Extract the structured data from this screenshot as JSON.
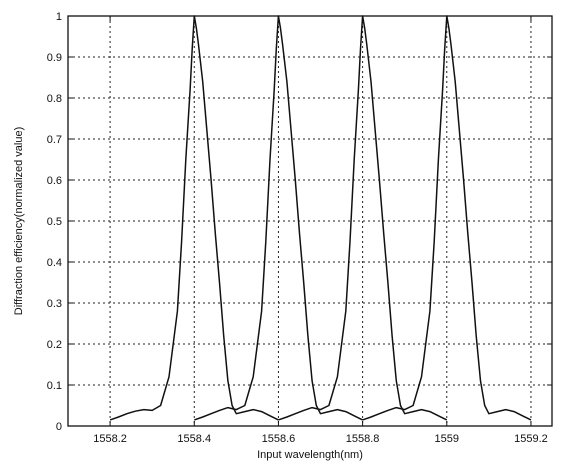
{
  "chart_data": {
    "type": "line",
    "title": "",
    "xlabel": "Input wavelength(nm)",
    "ylabel": "Diffraction efficiency(normalized value)",
    "xlim": [
      1558.1,
      1559.25
    ],
    "ylim": [
      0,
      1
    ],
    "grid": true,
    "legend": "none",
    "xticks": [
      1558.2,
      1558.4,
      1558.6,
      1558.8,
      1559,
      1559.2
    ],
    "xtick_labels": [
      "1558.2",
      "1558.4",
      "1558.6",
      "1558.8",
      "1559",
      "1559.2"
    ],
    "yticks": [
      0,
      0.1,
      0.2,
      0.3,
      0.4,
      0.5,
      0.6,
      0.7,
      0.8,
      0.9,
      1
    ],
    "ytick_labels": [
      "0",
      "0.1",
      "0.2",
      "0.3",
      "0.4",
      "0.5",
      "0.6",
      "0.7",
      "0.8",
      "0.9",
      "1"
    ],
    "line_color": "#111111",
    "series": [
      {
        "x": [
          1558.2,
          1558.22,
          1558.24,
          1558.26,
          1558.28,
          1558.3,
          1558.32,
          1558.34,
          1558.36,
          1558.37,
          1558.38,
          1558.39,
          1558.395,
          1558.4,
          1558.405,
          1558.41,
          1558.42,
          1558.43,
          1558.44,
          1558.45,
          1558.46,
          1558.47,
          1558.48,
          1558.49,
          1558.5,
          1558.52,
          1558.54,
          1558.56,
          1558.58,
          1558.6
        ],
        "y": [
          0.015,
          0.022,
          0.03,
          0.036,
          0.04,
          0.038,
          0.05,
          0.12,
          0.28,
          0.45,
          0.65,
          0.82,
          0.92,
          1.0,
          0.97,
          0.93,
          0.84,
          0.72,
          0.6,
          0.47,
          0.35,
          0.22,
          0.11,
          0.05,
          0.03,
          0.035,
          0.04,
          0.035,
          0.025,
          0.015
        ]
      },
      {
        "x": [
          1558.4,
          1558.42,
          1558.44,
          1558.46,
          1558.48,
          1558.5,
          1558.52,
          1558.54,
          1558.56,
          1558.57,
          1558.58,
          1558.59,
          1558.595,
          1558.6,
          1558.605,
          1558.61,
          1558.62,
          1558.63,
          1558.64,
          1558.65,
          1558.66,
          1558.67,
          1558.68,
          1558.69,
          1558.7,
          1558.72,
          1558.74,
          1558.76,
          1558.78,
          1558.8
        ],
        "y": [
          0.015,
          0.022,
          0.03,
          0.038,
          0.045,
          0.04,
          0.05,
          0.12,
          0.28,
          0.45,
          0.65,
          0.82,
          0.92,
          1.0,
          0.97,
          0.93,
          0.84,
          0.72,
          0.6,
          0.47,
          0.35,
          0.22,
          0.11,
          0.05,
          0.03,
          0.035,
          0.04,
          0.035,
          0.025,
          0.015
        ]
      },
      {
        "x": [
          1558.6,
          1558.62,
          1558.64,
          1558.66,
          1558.68,
          1558.7,
          1558.72,
          1558.74,
          1558.76,
          1558.77,
          1558.78,
          1558.79,
          1558.795,
          1558.8,
          1558.805,
          1558.81,
          1558.82,
          1558.83,
          1558.84,
          1558.85,
          1558.86,
          1558.87,
          1558.88,
          1558.89,
          1558.9,
          1558.92,
          1558.94,
          1558.96,
          1558.98,
          1559.0
        ],
        "y": [
          0.015,
          0.022,
          0.03,
          0.038,
          0.045,
          0.04,
          0.05,
          0.12,
          0.28,
          0.45,
          0.65,
          0.82,
          0.92,
          1.0,
          0.97,
          0.93,
          0.84,
          0.72,
          0.6,
          0.47,
          0.35,
          0.22,
          0.11,
          0.05,
          0.03,
          0.035,
          0.04,
          0.035,
          0.025,
          0.015
        ]
      },
      {
        "x": [
          1558.8,
          1558.82,
          1558.84,
          1558.86,
          1558.88,
          1558.9,
          1558.92,
          1558.94,
          1558.96,
          1558.97,
          1558.98,
          1558.99,
          1558.995,
          1559.0,
          1559.005,
          1559.01,
          1559.02,
          1559.03,
          1559.04,
          1559.05,
          1559.06,
          1559.07,
          1559.08,
          1559.09,
          1559.1,
          1559.12,
          1559.14,
          1559.16,
          1559.18,
          1559.2
        ],
        "y": [
          0.015,
          0.022,
          0.03,
          0.038,
          0.045,
          0.04,
          0.05,
          0.12,
          0.28,
          0.45,
          0.65,
          0.82,
          0.92,
          1.0,
          0.97,
          0.93,
          0.84,
          0.72,
          0.6,
          0.47,
          0.35,
          0.22,
          0.11,
          0.05,
          0.03,
          0.035,
          0.04,
          0.035,
          0.025,
          0.015
        ]
      }
    ]
  }
}
